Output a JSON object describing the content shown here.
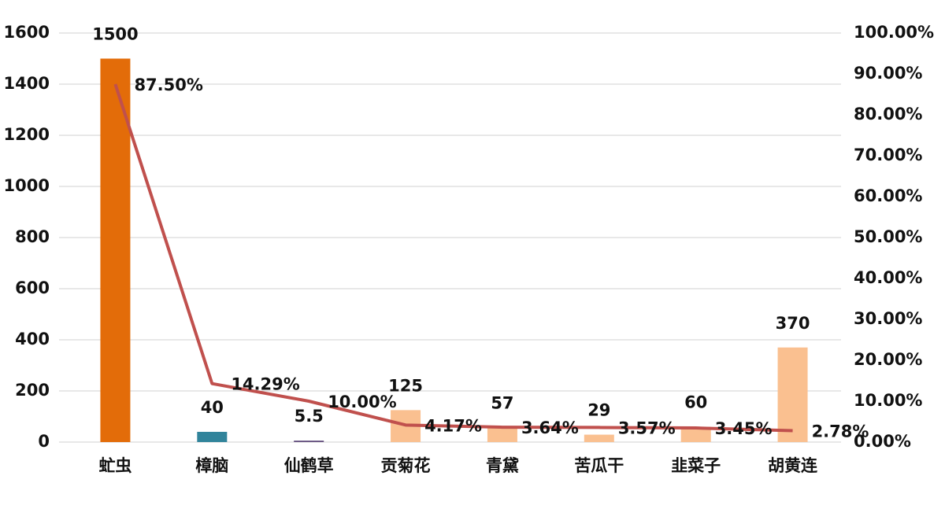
{
  "chart_data": {
    "type": "bar",
    "categories": [
      "虻虫",
      "樟脑",
      "仙鹤草",
      "贡菊花",
      "青黛",
      "苦瓜干",
      "韭菜子",
      "胡黄连"
    ],
    "series": [
      {
        "type": "bar",
        "values": [
          1500,
          40,
          5.5,
          125,
          57,
          29,
          60,
          370
        ],
        "colors": [
          "#e36c09",
          "#31849b",
          "#5f497a",
          "#fac090",
          "#fac090",
          "#fac090",
          "#fac090",
          "#fac090"
        ]
      },
      {
        "type": "line",
        "axis": "y2",
        "color": "#c0504d",
        "values": [
          87.5,
          14.29,
          10.0,
          4.17,
          3.64,
          3.57,
          3.45,
          2.78
        ],
        "value_labels": [
          "87.50%",
          "14.29%",
          "10.00%",
          "4.17%",
          "3.64%",
          "3.57%",
          "3.45%",
          "2.78%"
        ]
      }
    ],
    "ylim": [
      0,
      1600
    ],
    "yticks": [
      0,
      200,
      400,
      600,
      800,
      1000,
      1200,
      1400,
      1600
    ],
    "y2lim": [
      0,
      100
    ],
    "y2ticks": [
      {
        "value": 0,
        "label": "0.00%"
      },
      {
        "value": 10,
        "label": "10.00%"
      },
      {
        "value": 20,
        "label": "20.00%"
      },
      {
        "value": 30,
        "label": "30.00%"
      },
      {
        "value": 40,
        "label": "40.00%"
      },
      {
        "value": 50,
        "label": "50.00%"
      },
      {
        "value": 60,
        "label": "60.00%"
      },
      {
        "value": 70,
        "label": "70.00%"
      },
      {
        "value": 80,
        "label": "80.00%"
      },
      {
        "value": 90,
        "label": "90.00%"
      },
      {
        "value": 100,
        "label": "100.00%"
      }
    ],
    "grid": true
  }
}
